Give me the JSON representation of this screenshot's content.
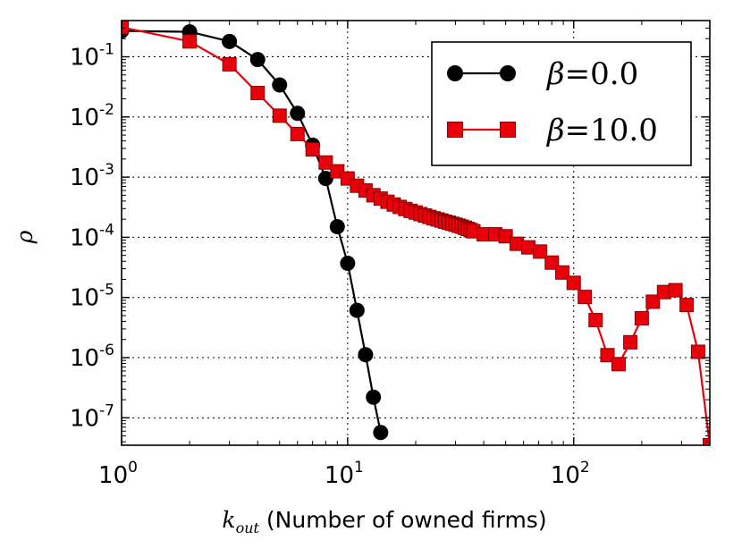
{
  "chart_data": {
    "type": "line",
    "xscale": "log",
    "yscale": "log",
    "xlim": [
      1,
      400
    ],
    "ylim": [
      3.5e-08,
      0.4
    ],
    "grid": true,
    "legend_position": "top-right",
    "xlabel_math": "k",
    "xlabel_sub": "out",
    "xlabel_text": "(Number of owned firms)",
    "ylabel": "ρ",
    "x_ticks": [
      {
        "value": 1,
        "base": "10",
        "exp": "0"
      },
      {
        "value": 10,
        "base": "10",
        "exp": "1"
      },
      {
        "value": 100,
        "base": "10",
        "exp": "2"
      }
    ],
    "y_ticks": [
      {
        "value": 0.1,
        "base": "10",
        "exp": "-1"
      },
      {
        "value": 0.01,
        "base": "10",
        "exp": "-2"
      },
      {
        "value": 0.001,
        "base": "10",
        "exp": "-3"
      },
      {
        "value": 0.0001,
        "base": "10",
        "exp": "-4"
      },
      {
        "value": 1e-05,
        "base": "10",
        "exp": "-5"
      },
      {
        "value": 1e-06,
        "base": "10",
        "exp": "-6"
      },
      {
        "value": 1e-07,
        "base": "10",
        "exp": "-7"
      }
    ],
    "series": [
      {
        "name": "β=0.0",
        "legend_symbol": "β",
        "legend_value": "=0.0",
        "color": "#000000",
        "marker": "circle",
        "x": [
          1,
          2,
          3,
          4,
          5,
          6,
          7,
          8,
          9,
          10,
          11,
          12,
          13,
          14
        ],
        "y": [
          0.27,
          0.26,
          0.18,
          0.09,
          0.034,
          0.0115,
          0.0034,
          0.00095,
          0.00015,
          3.7e-05,
          6.1e-06,
          1.12e-06,
          2.2e-07,
          5.7e-08
        ]
      },
      {
        "name": "β=10.0",
        "legend_symbol": "β",
        "legend_value": "=10.0",
        "color": "#e8000b",
        "marker": "square",
        "x": [
          1,
          2,
          3,
          4,
          5,
          6,
          7,
          8,
          9,
          10,
          11,
          12,
          13,
          14,
          15,
          16,
          17,
          18,
          19,
          20,
          21,
          22,
          23,
          24,
          25,
          26,
          27,
          28,
          29,
          30,
          31,
          32,
          33,
          34,
          35,
          36,
          40,
          45,
          50,
          56,
          63,
          71,
          80,
          89,
          100,
          112,
          125,
          141,
          158,
          178,
          200,
          224,
          251,
          282,
          316,
          355,
          400
        ],
        "y": [
          0.31,
          0.18,
          0.075,
          0.025,
          0.0105,
          0.0052,
          0.0029,
          0.00175,
          0.00125,
          0.00095,
          0.00072,
          0.0006,
          0.0005,
          0.00044,
          0.00039,
          0.00035,
          0.00032,
          0.000295,
          0.000275,
          0.000258,
          0.000243,
          0.00023,
          0.000218,
          0.000207,
          0.000198,
          0.00019,
          0.000182,
          0.000175,
          0.000168,
          0.000162,
          0.000156,
          0.00015,
          0.000144,
          0.000138,
          0.000132,
          0.000126,
          0.000112,
          0.000112,
          0.000104,
          7.8e-05,
          6.8e-05,
          5.8e-05,
          3.8e-05,
          2.6e-05,
          1.75e-05,
          1.02e-05,
          4.2e-06,
          1.1e-06,
          7.8e-07,
          1.8e-06,
          4.5e-06,
          8.5e-06,
          1.23e-05,
          1.32e-05,
          7.5e-06,
          1.25e-06,
          3.5e-08
        ]
      }
    ]
  }
}
